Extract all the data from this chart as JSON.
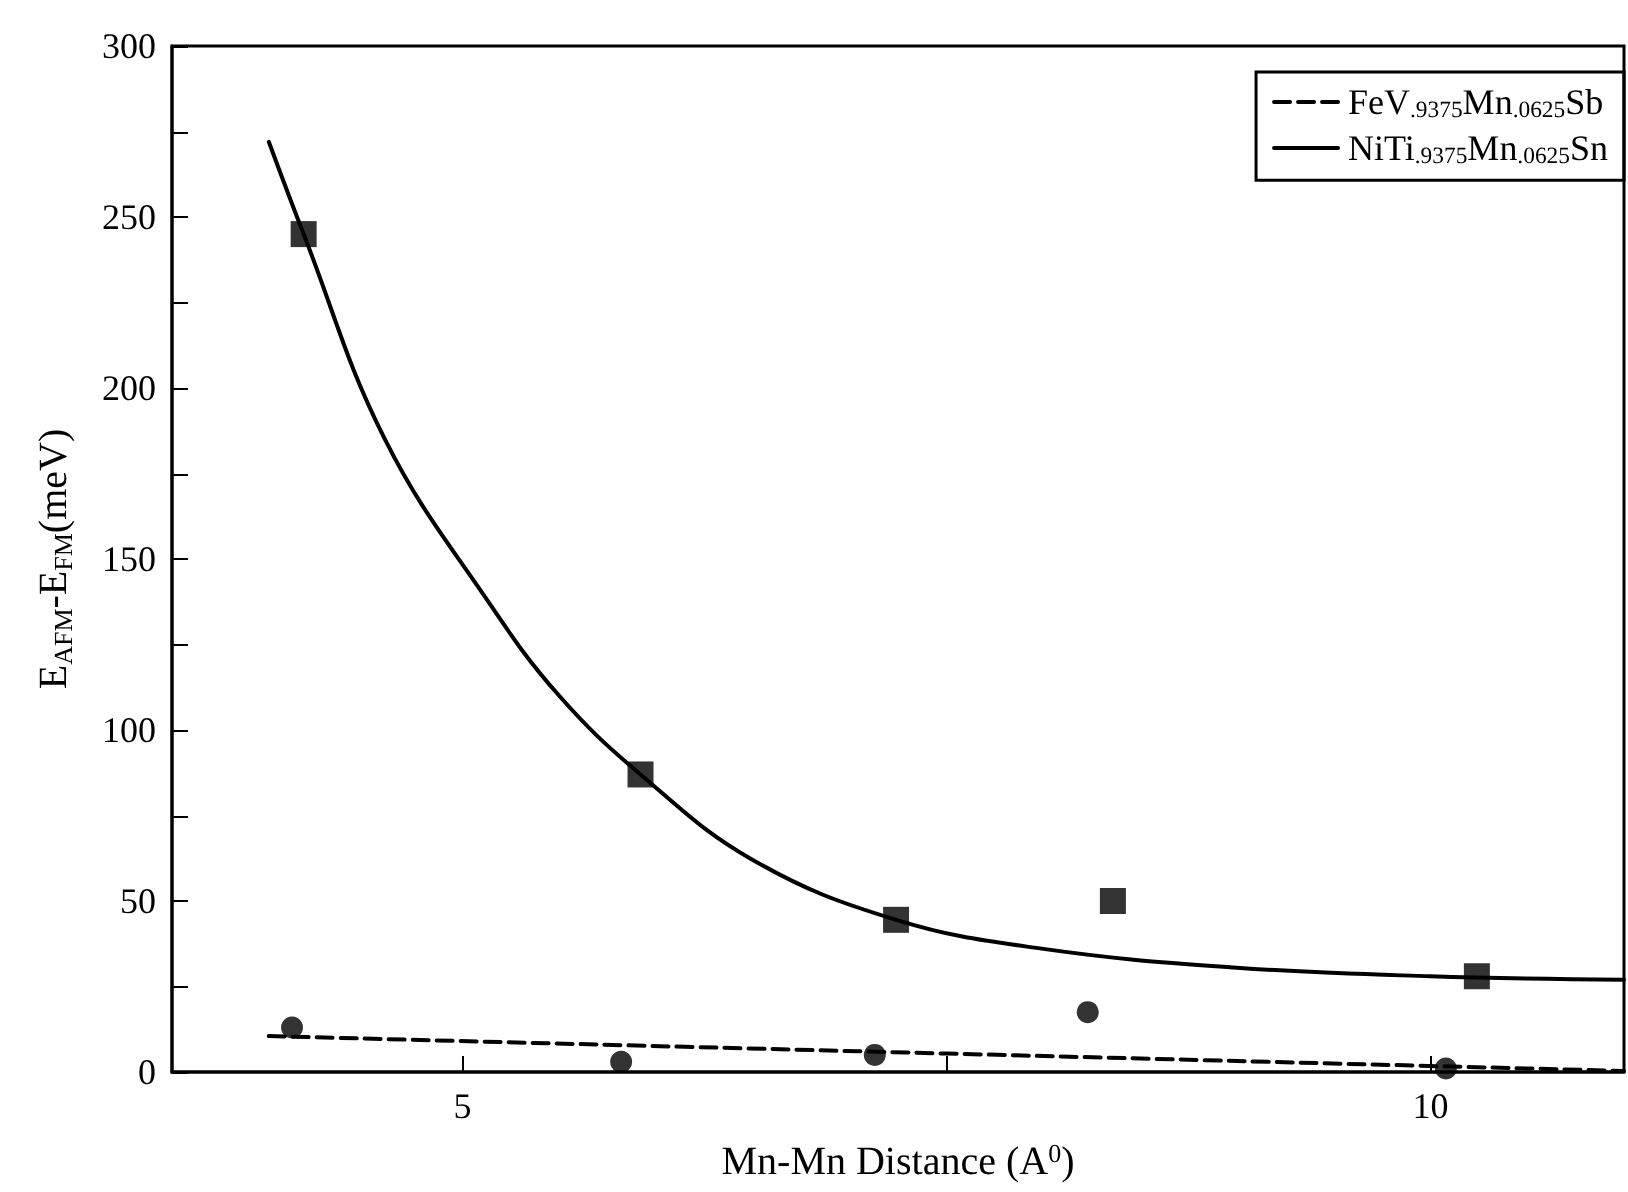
{
  "chart_data": {
    "type": "scatter",
    "xlabel": "Mn-Mn Distance (A$^{0}$)",
    "ylabel": "E$_{AFM}$-E$_{FM}$(meV)",
    "xlim": [
      3.5,
      11
    ],
    "xticks": [
      5,
      {
        "value": 7.5,
        "label": null
      },
      10
    ],
    "ylim": [
      0,
      300
    ],
    "yticks": [
      0,
      {
        "value": 25,
        "label": null
      },
      50,
      {
        "value": 75,
        "label": null
      },
      100,
      {
        "value": 125,
        "label": null
      },
      150,
      {
        "value": 175,
        "label": null
      },
      200,
      {
        "value": 225,
        "label": null
      },
      250,
      {
        "value": 275,
        "label": null
      },
      300
    ],
    "grid": false,
    "legend": "top right",
    "series": [
      {
        "marker": "square",
        "color": "#000000",
        "x": [
          4.18,
          5.92,
          7.24,
          8.36,
          10.24
        ],
        "values": [
          245,
          87,
          44.5,
          50,
          28
        ]
      },
      {
        "marker": "circle",
        "color": "#000000",
        "x": [
          4.12,
          5.82,
          7.13,
          8.23,
          10.08
        ],
        "values": [
          13,
          3,
          5,
          17.5,
          1
        ]
      },
      {
        "type": "line",
        "name": "FeV$_{.9375}$Mn$_{.0625}$Sb",
        "marker": "none",
        "line_style": "dashed",
        "color": "#000000",
        "x": [
          4.0,
          11
        ],
        "values": [
          10.5,
          0.3
        ]
      },
      {
        "type": "line",
        "name": "NiTi$_{.9375}$Mn$_{.0625}$Sn",
        "marker": "none",
        "line_style": "solid",
        "color": "#000000",
        "x": [
          4.0,
          4.18,
          4.6,
          5.14,
          5.5,
          5.92,
          6.5,
          7.24,
          8,
          9,
          10,
          11
        ],
        "values": [
          272,
          245,
          185,
          137,
          110,
          87,
          62,
          44.5,
          36,
          30.5,
          28,
          27
        ]
      }
    ]
  }
}
